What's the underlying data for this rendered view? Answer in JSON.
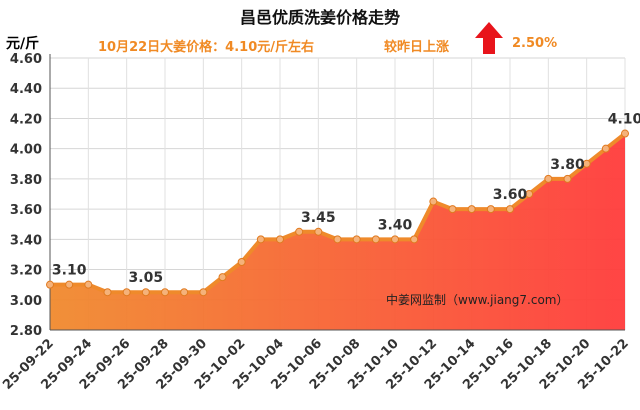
{
  "header": {
    "title": "昌邑优质洗姜价格走势",
    "price_text": "10月22日大姜价格：4.10元/斤左右",
    "change_text": "较昨日上涨",
    "change_pct": "2.50%",
    "unit_label": "元/斤",
    "watermark": "中姜网监制（www.jiang7.com）"
  },
  "colors": {
    "line": "#ef8a2b",
    "fill_top": "#ff3b3b",
    "fill_bottom": "#f08a2e",
    "arrow": "#e8141b",
    "subtitle": "#f08a24"
  },
  "chart_data": {
    "type": "area",
    "title": "昌邑优质洗姜价格走势",
    "ylabel": "元/斤",
    "ylim": [
      2.8,
      4.6
    ],
    "yticks": [
      "2.80",
      "3.00",
      "3.20",
      "3.40",
      "3.60",
      "3.80",
      "4.00",
      "4.20",
      "4.40",
      "4.60"
    ],
    "grid": true,
    "x": [
      "25-09-22",
      "25-09-23",
      "25-09-24",
      "25-09-25",
      "25-09-26",
      "25-09-27",
      "25-09-28",
      "25-09-29",
      "25-09-30",
      "25-10-01",
      "25-10-02",
      "25-10-03",
      "25-10-04",
      "25-10-05",
      "25-10-06",
      "25-10-07",
      "25-10-08",
      "25-10-09",
      "25-10-10",
      "25-10-11",
      "25-10-12",
      "25-10-13",
      "25-10-14",
      "25-10-15",
      "25-10-16",
      "25-10-17",
      "25-10-18",
      "25-10-19",
      "25-10-20",
      "25-10-21",
      "25-10-22"
    ],
    "xtick_labels": [
      "25-09-22",
      "25-09-24",
      "25-09-26",
      "25-09-28",
      "25-09-30",
      "25-10-02",
      "25-10-04",
      "25-10-06",
      "25-10-08",
      "25-10-10",
      "25-10-12",
      "25-10-14",
      "25-10-16",
      "25-10-18",
      "25-10-20",
      "25-10-22"
    ],
    "values": [
      3.1,
      3.1,
      3.1,
      3.05,
      3.05,
      3.05,
      3.05,
      3.05,
      3.05,
      3.15,
      3.25,
      3.4,
      3.4,
      3.45,
      3.45,
      3.4,
      3.4,
      3.4,
      3.4,
      3.4,
      3.65,
      3.6,
      3.6,
      3.6,
      3.6,
      3.7,
      3.8,
      3.8,
      3.9,
      4.0,
      4.1
    ],
    "data_labels": [
      {
        "index": 1,
        "text": "3.10"
      },
      {
        "index": 5,
        "text": "3.05"
      },
      {
        "index": 14,
        "text": "3.45"
      },
      {
        "index": 18,
        "text": "3.40"
      },
      {
        "index": 24,
        "text": "3.60"
      },
      {
        "index": 27,
        "text": "3.80"
      },
      {
        "index": 30,
        "text": "4.10"
      }
    ]
  }
}
